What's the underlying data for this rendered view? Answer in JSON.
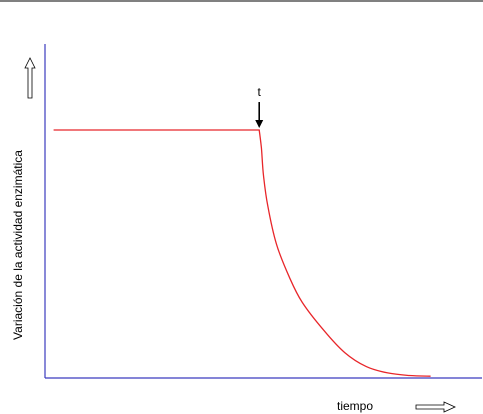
{
  "chart_data": {
    "type": "line",
    "title": "",
    "xlabel": "tiempo",
    "ylabel": "Variación de la actividad enzimática",
    "xlim": [
      0,
      10
    ],
    "ylim": [
      0,
      10
    ],
    "grid": false,
    "annotations": [
      {
        "text": "t",
        "x": 5,
        "arrow": "down"
      }
    ],
    "series": [
      {
        "color": "#e8262a",
        "x": [
          0.2,
          5.0,
          5.05,
          5.1,
          5.2,
          5.4,
          5.7,
          6.0,
          6.5,
          7.0,
          7.5,
          8.0,
          8.5,
          9.0
        ],
        "y": [
          9.8,
          9.8,
          9.1,
          8.0,
          6.8,
          5.3,
          4.0,
          3.0,
          1.9,
          1.0,
          0.45,
          0.2,
          0.1,
          0.07
        ]
      }
    ],
    "colors": {
      "axis": "#3b3bbf",
      "line": "#e8262a",
      "top_rule": "#000000"
    }
  }
}
